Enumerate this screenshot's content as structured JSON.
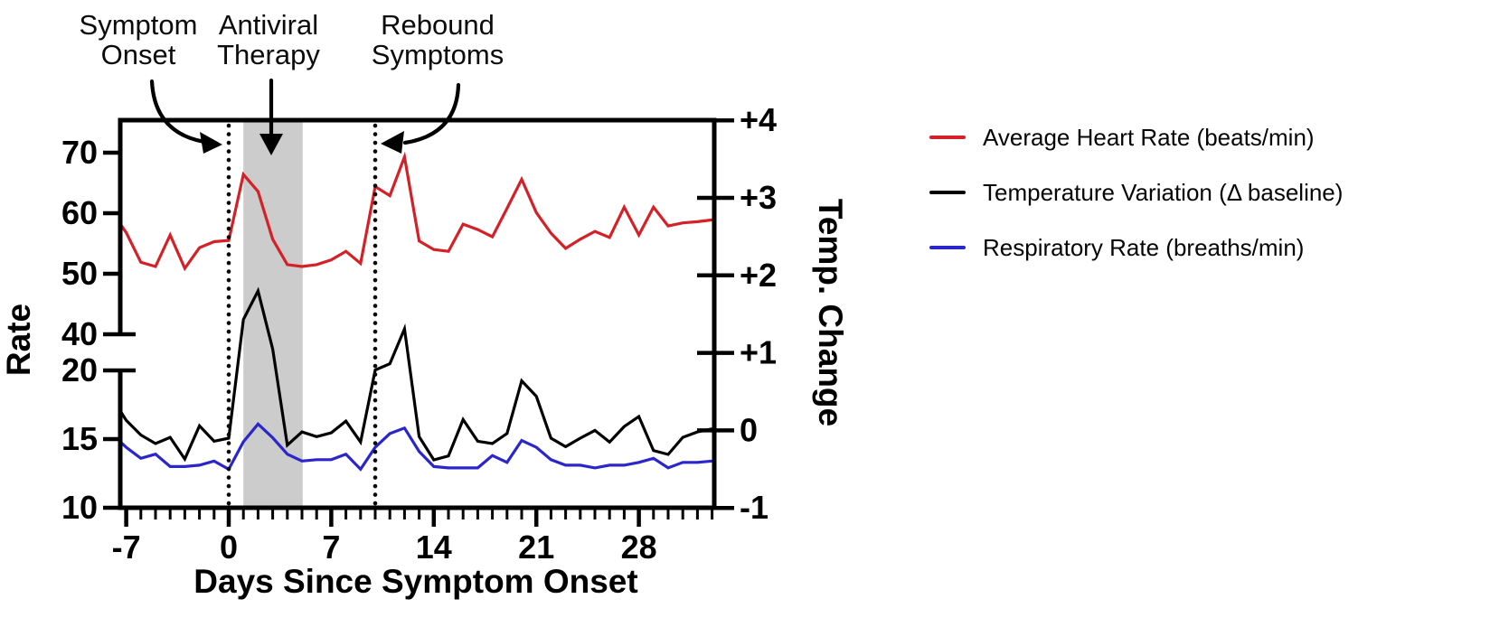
{
  "figure": {
    "background": "#ffffff",
    "frame_color": "#000000"
  },
  "annotations": {
    "symptom_onset": "Symptom\nOnset",
    "antiviral_therapy": "Antiviral\nTherapy",
    "rebound_symptoms": "Rebound\nSymptoms"
  },
  "legend": {
    "items": [
      {
        "label": "Average Heart Rate (beats/min)",
        "color": "#d42127"
      },
      {
        "label": "Temperature Variation (Δ baseline)",
        "color": "#000000"
      },
      {
        "label": "Respiratory Rate (breaths/min)",
        "color": "#2b26cc"
      }
    ]
  },
  "chart_data": {
    "type": "line",
    "title": "",
    "xlabel": "Days Since Symptom Onset",
    "x_range": [
      -7.4,
      33.1
    ],
    "x_major_ticks": [
      -7,
      0,
      7,
      14,
      21,
      28
    ],
    "x_major_tick_labels": [
      "-7",
      "0",
      "7",
      "14",
      "21",
      "28"
    ],
    "x_minor_tick_step": 1,
    "left_axis": {
      "label": "Rate",
      "upper_segment": {
        "ticks": [
          70,
          60,
          50,
          40
        ],
        "range": [
          40,
          75.4
        ],
        "scale": "heart-rate"
      },
      "lower_segment": {
        "ticks": [
          20,
          15,
          10
        ],
        "range": [
          10,
          20
        ],
        "scale": "respiratory-rate"
      },
      "broken_axis": true
    },
    "right_axis": {
      "label": "Temp. Change",
      "tick_labels": [
        "+4",
        "+3",
        "+2",
        "+1",
        "0",
        "-1"
      ],
      "tick_values": [
        4,
        3,
        2,
        1,
        0,
        -1
      ],
      "range": [
        -1,
        4
      ]
    },
    "shaded_region": {
      "x_start": 1,
      "x_end": 5.05,
      "color": "#cccccc"
    },
    "event_lines": [
      {
        "x": 0
      },
      {
        "x": 10
      }
    ],
    "legend_position": "right",
    "grid": false,
    "x": [
      -7.4,
      -7,
      -6,
      -5,
      -4,
      -3,
      -2,
      -1,
      0,
      1,
      2,
      3,
      4,
      5,
      6,
      7,
      8,
      9,
      10,
      11,
      12,
      13,
      14,
      15,
      16,
      17,
      18,
      19,
      20,
      21,
      22,
      23,
      24,
      25,
      26,
      27,
      28,
      29,
      30,
      31,
      32,
      33
    ],
    "series": [
      {
        "name": "Average Heart Rate (beats/min)",
        "axis": "hr",
        "color": "#d42127",
        "values": [
          58.2,
          56.8,
          51.9,
          51.2,
          56.4,
          50.9,
          54.3,
          55.3,
          55.5,
          66.4,
          63.6,
          55.7,
          51.5,
          51.2,
          51.5,
          52.3,
          53.7,
          51.7,
          64.4,
          62.9,
          69.3,
          55.4,
          54.0,
          53.7,
          58.2,
          57.3,
          56.1,
          60.8,
          65.6,
          60.1,
          56.7,
          54.2,
          55.7,
          57.0,
          56.0,
          61.0,
          56.4,
          61.0,
          57.9,
          58.4,
          58.6,
          58.9
        ]
      },
      {
        "name": "Temperature Variation (Δ baseline)",
        "axis": "temp",
        "color": "#000000",
        "values": [
          0.25,
          0.13,
          -0.06,
          -0.17,
          -0.09,
          -0.37,
          0.06,
          -0.14,
          -0.1,
          1.43,
          1.8,
          1.05,
          -0.19,
          -0.02,
          -0.08,
          -0.03,
          0.12,
          -0.15,
          0.78,
          0.86,
          1.31,
          -0.08,
          -0.38,
          -0.33,
          0.14,
          -0.14,
          -0.17,
          -0.04,
          0.64,
          0.44,
          -0.1,
          -0.21,
          -0.1,
          0.0,
          -0.15,
          0.05,
          0.18,
          -0.26,
          -0.31,
          -0.09,
          -0.02,
          0.02
        ]
      },
      {
        "name": "Respiratory Rate (breaths/min)",
        "axis": "resp",
        "color": "#2b26cc",
        "values": [
          14.8,
          14.4,
          13.6,
          13.9,
          13.0,
          13.0,
          13.1,
          13.4,
          12.8,
          14.8,
          16.1,
          15.1,
          13.9,
          13.4,
          13.5,
          13.5,
          13.9,
          12.8,
          14.4,
          15.4,
          15.8,
          14.1,
          13.0,
          12.9,
          12.9,
          12.9,
          13.8,
          13.3,
          14.9,
          14.4,
          13.5,
          13.1,
          13.1,
          12.9,
          13.1,
          13.1,
          13.3,
          13.6,
          12.9,
          13.3,
          13.3,
          13.4
        ]
      }
    ]
  }
}
